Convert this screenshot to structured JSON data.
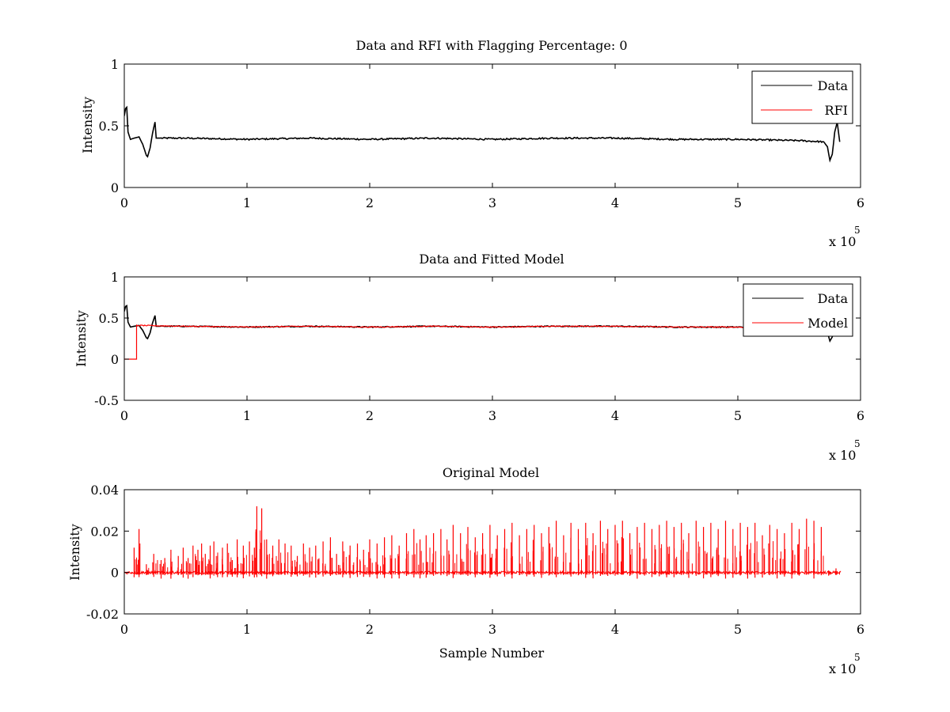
{
  "chart_data": [
    {
      "type": "line",
      "title": "Data and RFI with Flagging Percentage: 0",
      "xlabel": "",
      "ylabel": "Intensity",
      "xlim": [
        0,
        6
      ],
      "ylim": [
        0,
        1
      ],
      "x_multiplier": "x 10",
      "x_multiplier_exp": "5",
      "xticks": [
        "0",
        "1",
        "2",
        "3",
        "4",
        "5",
        "6"
      ],
      "yticks": [
        "0",
        "0.5",
        "1"
      ],
      "legend_position": "top-right",
      "series": [
        {
          "name": "Data",
          "color": "#000000",
          "x": [
            0,
            0.01,
            0.02,
            0.03,
            0.05,
            0.08,
            0.12,
            0.15,
            0.18,
            0.19,
            0.21,
            0.23,
            0.25,
            0.26,
            0.3,
            0.5,
            1.0,
            1.5,
            2.0,
            2.5,
            3.0,
            3.5,
            4.0,
            4.5,
            5.0,
            5.5,
            5.7,
            5.73,
            5.75,
            5.77,
            5.79,
            5.81,
            5.83
          ],
          "y": [
            0.58,
            0.64,
            0.65,
            0.45,
            0.39,
            0.4,
            0.41,
            0.35,
            0.26,
            0.25,
            0.32,
            0.44,
            0.53,
            0.4,
            0.4,
            0.4,
            0.39,
            0.4,
            0.39,
            0.4,
            0.39,
            0.4,
            0.4,
            0.39,
            0.39,
            0.38,
            0.37,
            0.33,
            0.22,
            0.27,
            0.45,
            0.53,
            0.37
          ]
        },
        {
          "name": "RFI",
          "color": "#ff0000",
          "x": [],
          "y": []
        }
      ]
    },
    {
      "type": "line",
      "title": "Data and Fitted Model",
      "xlabel": "",
      "ylabel": "Intensity",
      "xlim": [
        0,
        6
      ],
      "ylim": [
        -0.5,
        1
      ],
      "x_multiplier": "x 10",
      "x_multiplier_exp": "5",
      "xticks": [
        "0",
        "1",
        "2",
        "3",
        "4",
        "5",
        "6"
      ],
      "yticks": [
        "-0.5",
        "0",
        "0.5",
        "1"
      ],
      "legend_position": "top-right",
      "series": [
        {
          "name": "Data",
          "color": "#000000",
          "x": [
            0,
            0.01,
            0.02,
            0.03,
            0.05,
            0.08,
            0.12,
            0.15,
            0.18,
            0.19,
            0.21,
            0.23,
            0.25,
            0.26,
            0.3,
            0.5,
            1.0,
            1.5,
            2.0,
            2.5,
            3.0,
            3.5,
            4.0,
            4.5,
            5.0,
            5.5,
            5.7,
            5.73,
            5.75,
            5.77,
            5.79,
            5.81,
            5.83
          ],
          "y": [
            0.58,
            0.64,
            0.65,
            0.45,
            0.39,
            0.4,
            0.41,
            0.35,
            0.26,
            0.25,
            0.32,
            0.44,
            0.53,
            0.4,
            0.4,
            0.4,
            0.39,
            0.4,
            0.39,
            0.4,
            0.39,
            0.4,
            0.4,
            0.39,
            0.39,
            0.38,
            0.37,
            0.33,
            0.22,
            0.27,
            0.45,
            0.53,
            0.37
          ]
        },
        {
          "name": "Model",
          "color": "#ff0000",
          "x": [
            0,
            0.1,
            0.1,
            0.5,
            1.0,
            1.5,
            2.0,
            2.5,
            3.0,
            3.5,
            4.0,
            4.5,
            5.0,
            5.5,
            5.83
          ],
          "y": [
            0,
            0,
            0.41,
            0.4,
            0.39,
            0.4,
            0.39,
            0.4,
            0.39,
            0.4,
            0.4,
            0.39,
            0.39,
            0.38,
            0.38
          ]
        }
      ]
    },
    {
      "type": "line",
      "title": "Original Model",
      "xlabel": "Sample Number",
      "ylabel": "Intensity",
      "xlim": [
        0,
        6
      ],
      "ylim": [
        -0.02,
        0.04
      ],
      "x_multiplier": "x 10",
      "x_multiplier_exp": "5",
      "xticks": [
        "0",
        "1",
        "2",
        "3",
        "4",
        "5",
        "6"
      ],
      "yticks": [
        "-0.02",
        "0",
        "0.02",
        "0.04"
      ],
      "legend_position": "none",
      "series": [
        {
          "name": "",
          "color": "#ff0000",
          "spike_x": [
            0.08,
            0.12,
            0.18,
            0.24,
            0.3,
            0.33,
            0.38,
            0.44,
            0.48,
            0.52,
            0.56,
            0.6,
            0.63,
            0.66,
            0.7,
            0.73,
            0.76,
            0.8,
            0.84,
            0.88,
            0.92,
            0.97,
            1.02,
            1.06,
            1.08,
            1.12,
            1.16,
            1.21,
            1.26,
            1.31,
            1.36,
            1.41,
            1.46,
            1.51,
            1.56,
            1.62,
            1.68,
            1.73,
            1.78,
            1.84,
            1.9,
            1.95,
            2.0,
            2.06,
            2.12,
            2.18,
            2.24,
            2.3,
            2.36,
            2.41,
            2.46,
            2.52,
            2.58,
            2.63,
            2.68,
            2.74,
            2.8,
            2.86,
            2.92,
            2.98,
            3.04,
            3.1,
            3.16,
            3.22,
            3.28,
            3.34,
            3.4,
            3.46,
            3.52,
            3.58,
            3.64,
            3.7,
            3.76,
            3.82,
            3.88,
            3.94,
            4.0,
            4.06,
            4.12,
            4.18,
            4.24,
            4.3,
            4.36,
            4.42,
            4.48,
            4.54,
            4.6,
            4.66,
            4.72,
            4.78,
            4.84,
            4.9,
            4.96,
            5.02,
            5.08,
            5.14,
            5.2,
            5.26,
            5.32,
            5.38,
            5.44,
            5.5,
            5.56,
            5.62,
            5.68,
            5.74,
            5.8
          ],
          "spike_y": [
            0.012,
            0.021,
            0.004,
            0.009,
            0.006,
            0.007,
            0.011,
            0.008,
            0.012,
            0.007,
            0.013,
            0.011,
            0.014,
            0.009,
            0.013,
            0.015,
            0.008,
            0.012,
            0.014,
            0.006,
            0.016,
            0.013,
            0.015,
            0.012,
            0.032,
            0.031,
            0.016,
            0.013,
            0.016,
            0.014,
            0.013,
            0.008,
            0.014,
            0.012,
            0.013,
            0.015,
            0.017,
            0.009,
            0.015,
            0.013,
            0.014,
            0.011,
            0.016,
            0.014,
            0.017,
            0.018,
            0.013,
            0.019,
            0.021,
            0.016,
            0.018,
            0.019,
            0.021,
            0.016,
            0.023,
            0.019,
            0.022,
            0.017,
            0.019,
            0.023,
            0.018,
            0.021,
            0.024,
            0.018,
            0.021,
            0.023,
            0.019,
            0.022,
            0.025,
            0.018,
            0.024,
            0.021,
            0.024,
            0.019,
            0.025,
            0.021,
            0.023,
            0.025,
            0.019,
            0.022,
            0.024,
            0.021,
            0.023,
            0.025,
            0.022,
            0.024,
            0.019,
            0.025,
            0.022,
            0.024,
            0.021,
            0.025,
            0.021,
            0.024,
            0.022,
            0.024,
            0.018,
            0.023,
            0.021,
            0.019,
            0.024,
            0.021,
            0.026,
            0.025,
            0.022,
            0.001,
            0.002
          ]
        }
      ]
    }
  ]
}
